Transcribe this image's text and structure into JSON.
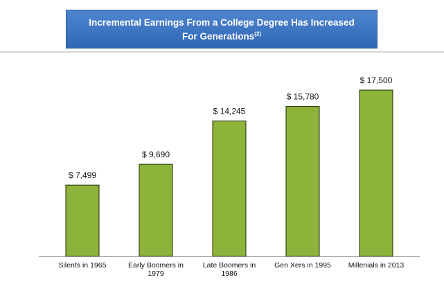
{
  "chart_data": {
    "type": "bar",
    "title_line1": "Incremental Earnings From a College Degree Has Increased",
    "title_line2": "For Generations",
    "title_superscript": "(2)",
    "categories": [
      "Silents in 1965",
      "Early Boomers in\n1979",
      "Late Boomers in\n1986",
      "Gen Xers in 1995",
      "Millenials in 2013"
    ],
    "values": [
      7499,
      9690,
      14245,
      15780,
      17500
    ],
    "value_labels": [
      "$ 7,499",
      "$ 9,690",
      "$ 14,245",
      "$ 15,780",
      "$ 17,500"
    ],
    "color": "#8db33a"
  }
}
